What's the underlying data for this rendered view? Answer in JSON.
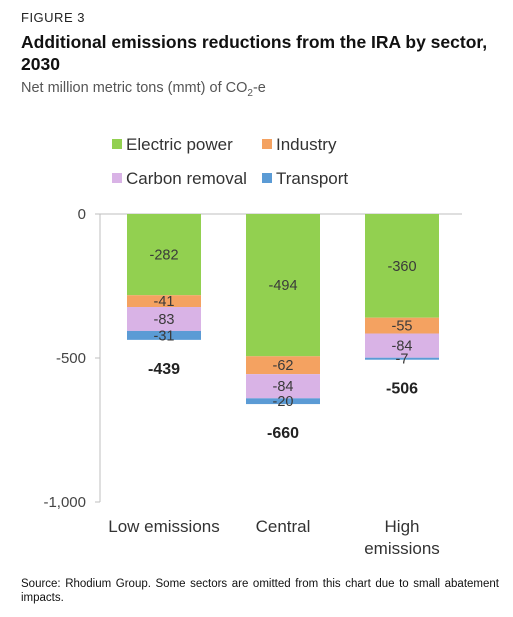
{
  "figure_label": "FIGURE 3",
  "title": "Additional emissions reductions from the IRA by sector, 2030",
  "subtitle_prefix": "Net million metric tons (mmt) of CO",
  "subtitle_sub": "2",
  "subtitle_suffix": "-e",
  "source": "Source: Rhodium Group. Some sectors are omitted from this chart due to small abatement impacts.",
  "chart_data": {
    "type": "bar",
    "stacked": true,
    "categories": [
      "Low emissions",
      "Central",
      "High emissions"
    ],
    "series": [
      {
        "name": "Electric power",
        "color": "#92d050",
        "values": [
          -282,
          -494,
          -360
        ]
      },
      {
        "name": "Industry",
        "color": "#f4a261",
        "values": [
          -41,
          -62,
          -55
        ]
      },
      {
        "name": "Carbon removal",
        "color": "#d9b3e6",
        "values": [
          -83,
          -84,
          -84
        ]
      },
      {
        "name": "Transport",
        "color": "#5b9bd5",
        "values": [
          -31,
          -20,
          -7
        ]
      }
    ],
    "totals": [
      -439,
      -660,
      -506
    ],
    "ylim": [
      -1000,
      0
    ],
    "yticks": [
      0,
      -500,
      -1000
    ],
    "ytick_labels": [
      "0",
      "-500",
      "-1,000"
    ],
    "legend_position": "top",
    "grid": false
  }
}
